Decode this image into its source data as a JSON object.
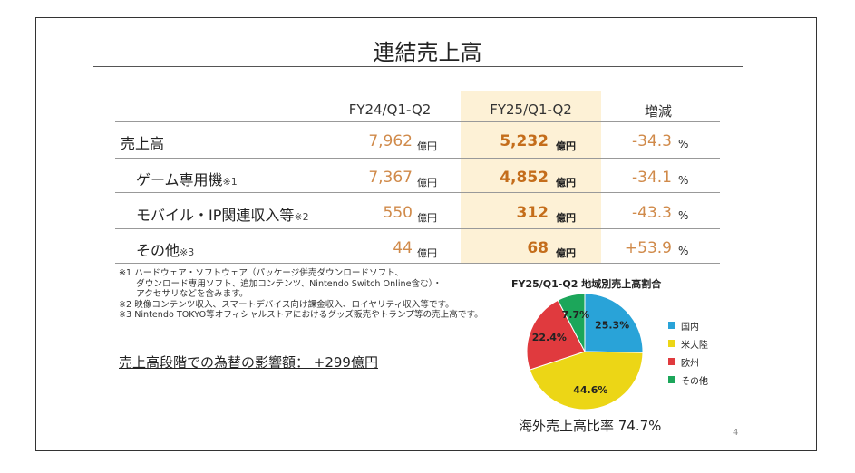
{
  "title": "連結売上高",
  "columns": {
    "prev": "FY24/Q1-Q2",
    "curr": "FY25/Q1-Q2",
    "change": "増減"
  },
  "rows": [
    {
      "label": "売上高",
      "note": "",
      "prev": "7,962",
      "prev_unit": "億円",
      "curr": "5,232",
      "curr_unit": "億円",
      "change": "-34.3",
      "change_unit": "%"
    },
    {
      "label": "ゲーム専用機",
      "note": "※1",
      "prev": "7,367",
      "prev_unit": "億円",
      "curr": "4,852",
      "curr_unit": "億円",
      "change": "-34.1",
      "change_unit": "%"
    },
    {
      "label": "モバイル・IP関連収入等",
      "note": "※2",
      "prev": "550",
      "prev_unit": "億円",
      "curr": "312",
      "curr_unit": "億円",
      "change": "-43.3",
      "change_unit": "%"
    },
    {
      "label": "その他",
      "note": "※3",
      "prev": "44",
      "prev_unit": "億円",
      "curr": "68",
      "curr_unit": "億円",
      "change": "+53.9",
      "change_unit": "%"
    }
  ],
  "notes": [
    "※1 ハードウェア・ソフトウェア（パッケージ併売ダウンロードソフト、",
    "　　ダウンロード専用ソフト、追加コンテンツ、Nintendo Switch Online含む）・",
    "　　アクセサリなどを含みます。",
    "※2 映像コンテンツ収入、スマートデバイス向け課金収入、ロイヤリティ収入等です。",
    "※3 Nintendo TOKYO等オフィシャルストアにおけるグッズ販売やトランプ等の売上高です。"
  ],
  "fx_impact": "売上高段階での為替の影響額： +299億円",
  "chart_data": {
    "type": "pie",
    "title": "FY25/Q1-Q2 地域別売上高割合",
    "slices": [
      {
        "label": "国内",
        "value": 25.3,
        "display": "25.3%",
        "color": "#29a3d8"
      },
      {
        "label": "米大陸",
        "value": 44.6,
        "display": "44.6%",
        "color": "#ecd616"
      },
      {
        "label": "欧州",
        "value": 22.4,
        "display": "22.4%",
        "color": "#e03a3e"
      },
      {
        "label": "その他",
        "value": 7.7,
        "display": "7.7%",
        "color": "#1ca65a"
      }
    ],
    "legend_position": "right"
  },
  "overseas_ratio": "海外売上高比率 74.7%",
  "page_number": "4"
}
